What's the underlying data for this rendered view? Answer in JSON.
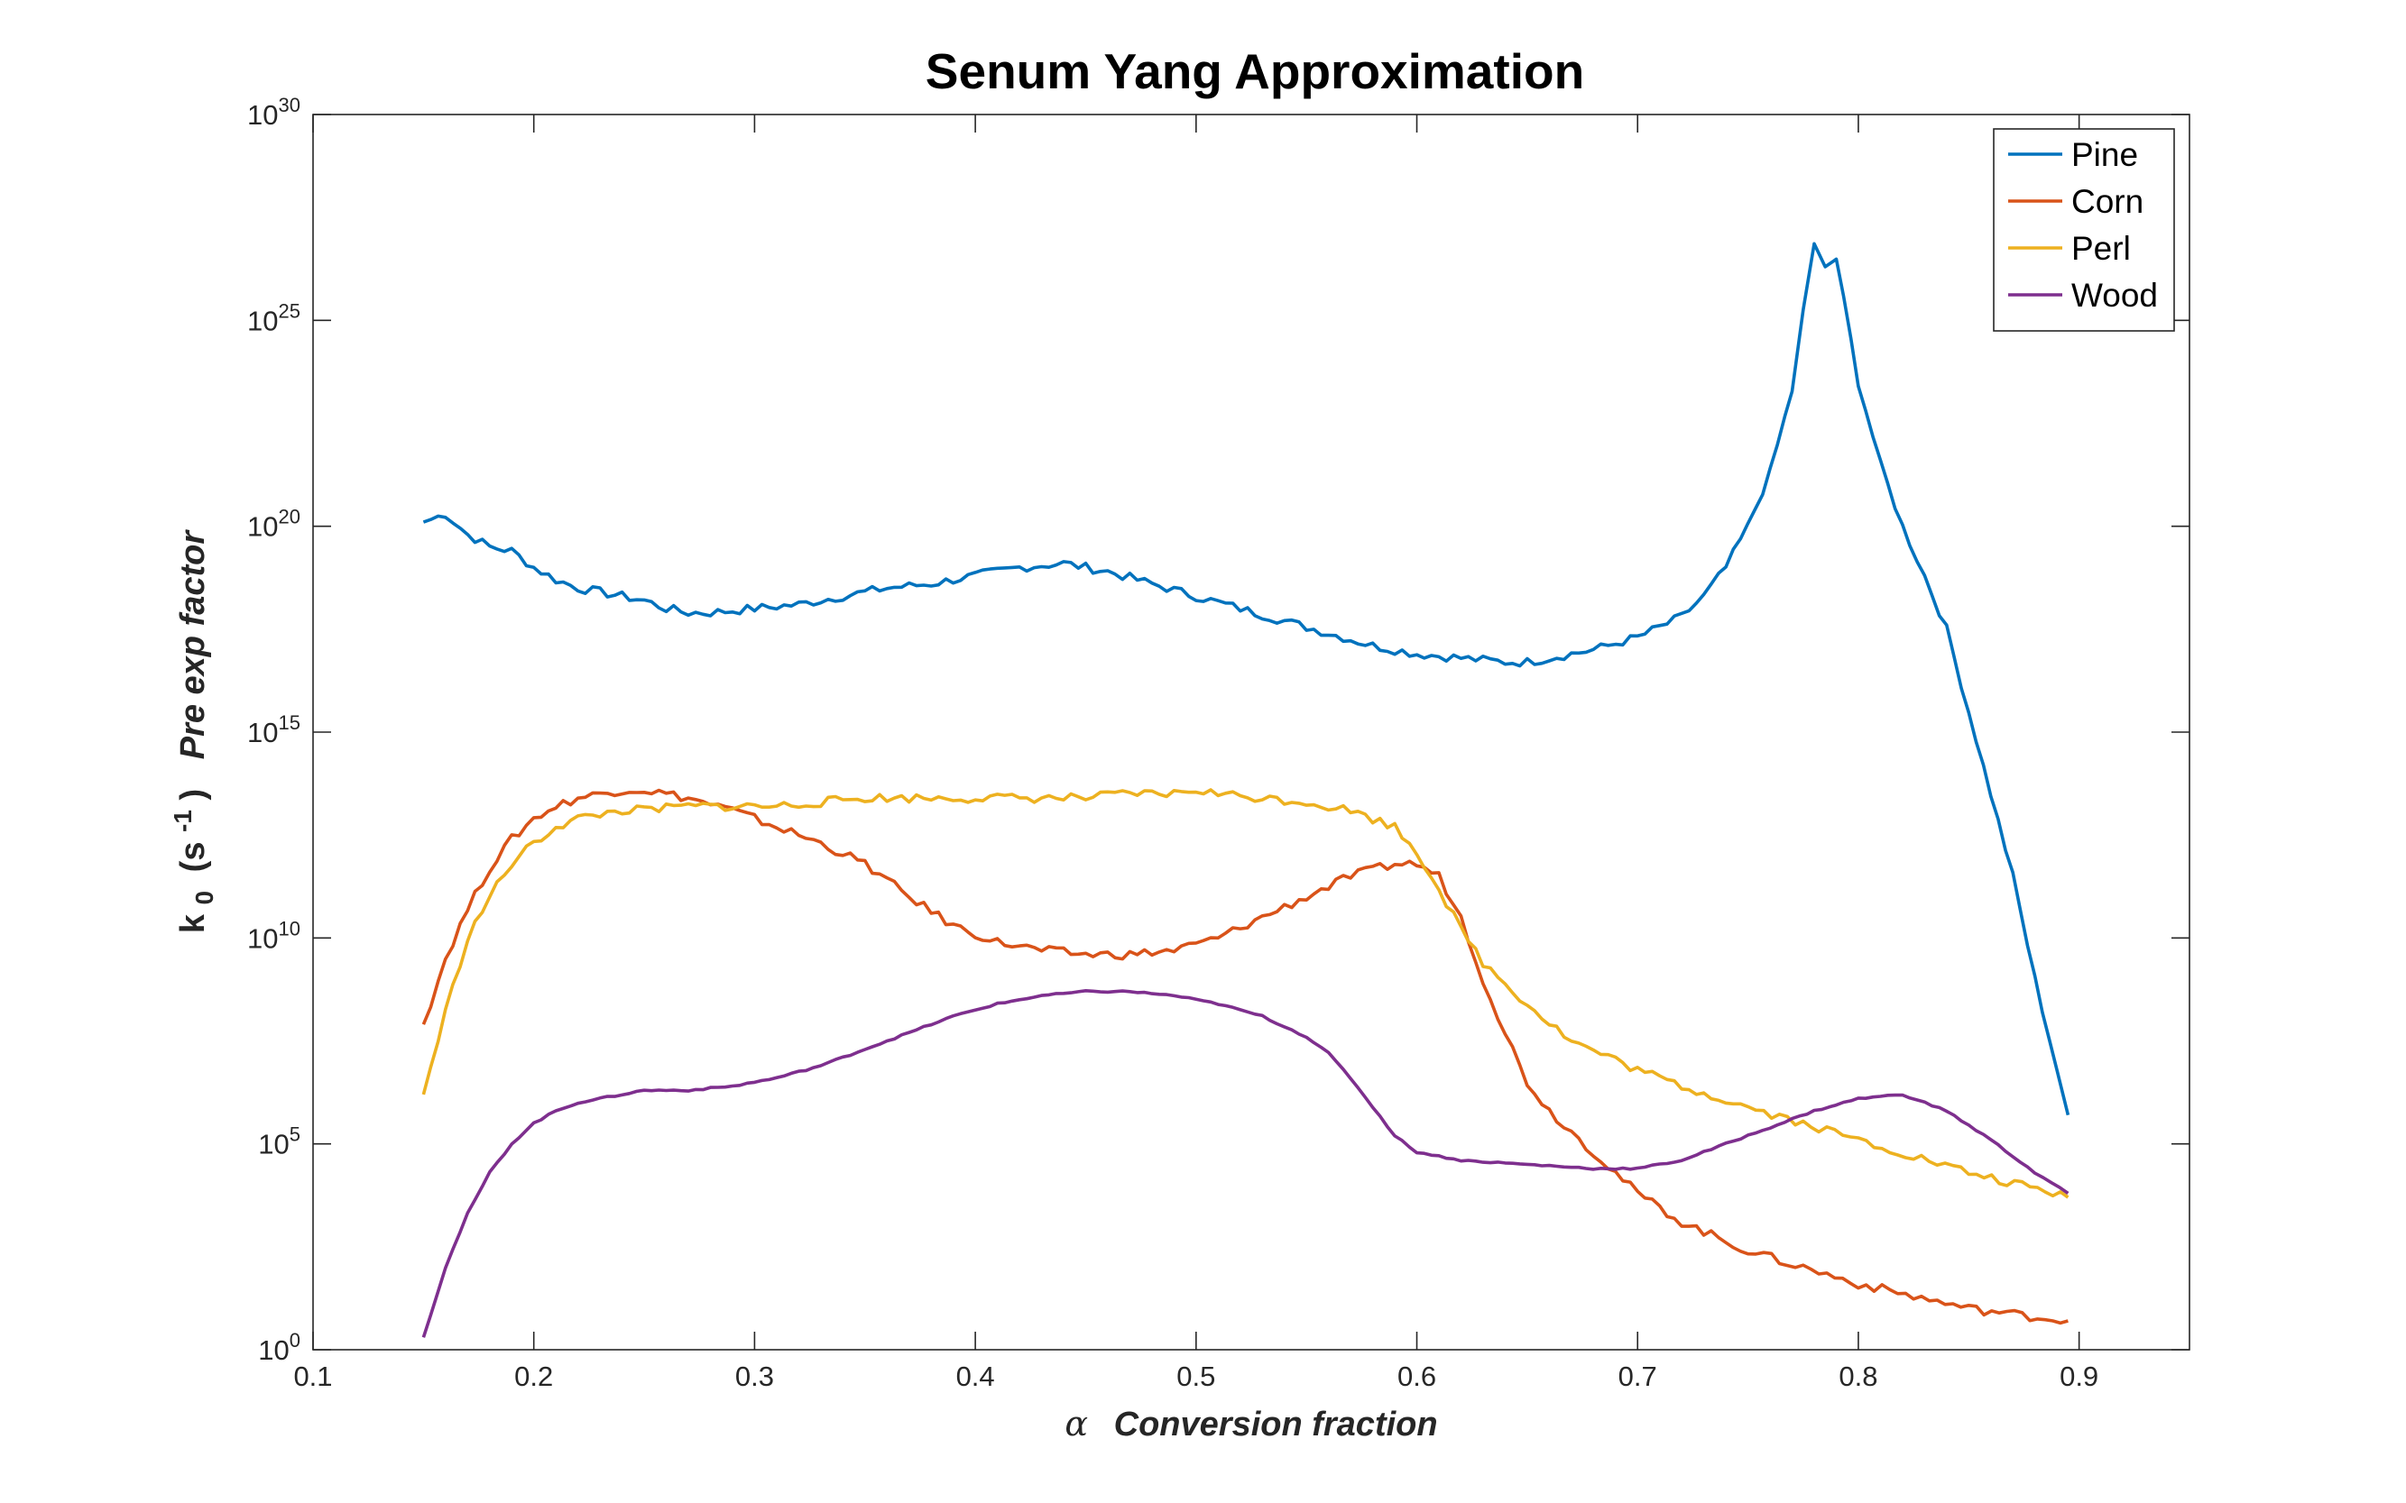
{
  "chart_data": {
    "type": "line",
    "title": "Senum Yang Approximation",
    "xlabel": {
      "symbol": "α",
      "text": "Conversion fraction"
    },
    "ylabel": {
      "base": "k",
      "base_sub": "0",
      "unit_open": "(s",
      "unit_sup": "-1",
      "unit_close": ")",
      "text": "Pre exp factor"
    },
    "xlim": [
      0.1,
      0.95
    ],
    "ylim_log10": [
      0,
      30
    ],
    "yscale": "log",
    "grid": false,
    "legend_position": "top-right",
    "x_ticks": [
      {
        "value": 0.1,
        "label": "0.1"
      },
      {
        "value": 0.2,
        "label": "0.2"
      },
      {
        "value": 0.3,
        "label": "0.3"
      },
      {
        "value": 0.4,
        "label": "0.4"
      },
      {
        "value": 0.5,
        "label": "0.5"
      },
      {
        "value": 0.6,
        "label": "0.6"
      },
      {
        "value": 0.7,
        "label": "0.7"
      },
      {
        "value": 0.8,
        "label": "0.8"
      },
      {
        "value": 0.9,
        "label": "0.9"
      }
    ],
    "y_ticks": [
      {
        "value_log10": 0,
        "base": "10",
        "exp": "0"
      },
      {
        "value_log10": 5,
        "base": "10",
        "exp": "5"
      },
      {
        "value_log10": 10,
        "base": "10",
        "exp": "10"
      },
      {
        "value_log10": 15,
        "base": "10",
        "exp": "15"
      },
      {
        "value_log10": 20,
        "base": "10",
        "exp": "20"
      },
      {
        "value_log10": 25,
        "base": "10",
        "exp": "25"
      },
      {
        "value_log10": 30,
        "base": "10",
        "exp": "30"
      }
    ],
    "y_value_units": "log10(k0)",
    "series": [
      {
        "name": "Pine",
        "color": "#0072BD",
        "x": [
          0.15,
          0.16,
          0.17,
          0.18,
          0.19,
          0.2,
          0.21,
          0.22,
          0.23,
          0.24,
          0.25,
          0.26,
          0.27,
          0.28,
          0.3,
          0.32,
          0.34,
          0.36,
          0.38,
          0.4,
          0.42,
          0.44,
          0.46,
          0.48,
          0.5,
          0.52,
          0.54,
          0.56,
          0.58,
          0.6,
          0.62,
          0.64,
          0.65,
          0.66,
          0.68,
          0.7,
          0.72,
          0.73,
          0.74,
          0.75,
          0.76,
          0.77,
          0.775,
          0.78,
          0.785,
          0.79,
          0.8,
          0.81,
          0.82,
          0.83,
          0.84,
          0.85,
          0.86,
          0.87,
          0.88,
          0.89,
          0.895
        ],
        "y": [
          20.1,
          20.3,
          19.8,
          19.5,
          19.4,
          19.0,
          18.7,
          18.5,
          18.4,
          18.3,
          18.2,
          18.0,
          17.9,
          17.9,
          18.0,
          18.1,
          18.3,
          18.5,
          18.6,
          18.8,
          19.0,
          19.1,
          18.9,
          18.6,
          18.3,
          18.0,
          17.7,
          17.4,
          17.1,
          16.9,
          16.8,
          16.7,
          16.7,
          16.8,
          17.0,
          17.3,
          17.8,
          18.3,
          19.0,
          20.0,
          21.3,
          23.3,
          25.2,
          26.8,
          26.3,
          26.5,
          23.5,
          21.5,
          20.0,
          18.8,
          17.5,
          15.5,
          13.5,
          11.5,
          9.0,
          6.8,
          5.7
        ]
      },
      {
        "name": "Corn",
        "color": "#D95319",
        "x": [
          0.15,
          0.16,
          0.17,
          0.18,
          0.19,
          0.2,
          0.21,
          0.22,
          0.23,
          0.24,
          0.25,
          0.27,
          0.29,
          0.31,
          0.33,
          0.35,
          0.37,
          0.39,
          0.41,
          0.43,
          0.45,
          0.47,
          0.49,
          0.51,
          0.53,
          0.55,
          0.57,
          0.59,
          0.6,
          0.61,
          0.62,
          0.63,
          0.64,
          0.65,
          0.66,
          0.68,
          0.7,
          0.72,
          0.75,
          0.8,
          0.85,
          0.895
        ],
        "y": [
          7.9,
          9.5,
          10.7,
          11.7,
          12.4,
          12.9,
          13.2,
          13.4,
          13.5,
          13.6,
          13.6,
          13.4,
          13.1,
          12.7,
          12.3,
          11.8,
          11.0,
          10.3,
          9.9,
          9.7,
          9.6,
          9.6,
          9.7,
          10.0,
          10.5,
          11.0,
          11.5,
          11.8,
          11.8,
          11.5,
          10.5,
          9.0,
          7.7,
          6.5,
          5.8,
          4.8,
          3.8,
          3.1,
          2.4,
          1.6,
          1.0,
          0.7
        ]
      },
      {
        "name": "Perl",
        "color": "#EDB120",
        "x": [
          0.15,
          0.16,
          0.17,
          0.18,
          0.19,
          0.2,
          0.21,
          0.22,
          0.23,
          0.24,
          0.25,
          0.27,
          0.29,
          0.31,
          0.33,
          0.35,
          0.37,
          0.39,
          0.41,
          0.43,
          0.45,
          0.47,
          0.49,
          0.5,
          0.51,
          0.53,
          0.55,
          0.57,
          0.59,
          0.6,
          0.61,
          0.62,
          0.63,
          0.65,
          0.67,
          0.7,
          0.72,
          0.75,
          0.8,
          0.85,
          0.895
        ],
        "y": [
          6.2,
          8.2,
          10.0,
          11.0,
          11.8,
          12.3,
          12.7,
          12.9,
          13.0,
          13.1,
          13.1,
          13.2,
          13.2,
          13.2,
          13.3,
          13.4,
          13.4,
          13.4,
          13.4,
          13.4,
          13.4,
          13.5,
          13.5,
          13.6,
          13.5,
          13.4,
          13.3,
          13.1,
          12.7,
          12.1,
          11.2,
          10.2,
          9.4,
          8.4,
          7.5,
          6.8,
          6.4,
          5.9,
          5.1,
          4.3,
          3.7
        ]
      },
      {
        "name": "Wood",
        "color": "#7E2F8E",
        "x": [
          0.15,
          0.16,
          0.17,
          0.18,
          0.19,
          0.2,
          0.21,
          0.22,
          0.23,
          0.25,
          0.27,
          0.29,
          0.31,
          0.33,
          0.35,
          0.37,
          0.39,
          0.41,
          0.43,
          0.45,
          0.47,
          0.49,
          0.51,
          0.53,
          0.55,
          0.56,
          0.57,
          0.58,
          0.59,
          0.6,
          0.62,
          0.65,
          0.68,
          0.7,
          0.72,
          0.75,
          0.78,
          0.8,
          0.82,
          0.84,
          0.86,
          0.88,
          0.895
        ],
        "y": [
          0.3,
          2.0,
          3.3,
          4.3,
          5.0,
          5.5,
          5.8,
          6.0,
          6.1,
          6.3,
          6.3,
          6.4,
          6.6,
          6.9,
          7.3,
          7.7,
          8.1,
          8.4,
          8.6,
          8.7,
          8.7,
          8.6,
          8.4,
          8.1,
          7.6,
          7.2,
          6.6,
          5.9,
          5.2,
          4.8,
          4.6,
          4.5,
          4.4,
          4.4,
          4.6,
          5.2,
          5.8,
          6.1,
          6.2,
          5.8,
          5.1,
          4.3,
          3.8
        ]
      }
    ]
  }
}
